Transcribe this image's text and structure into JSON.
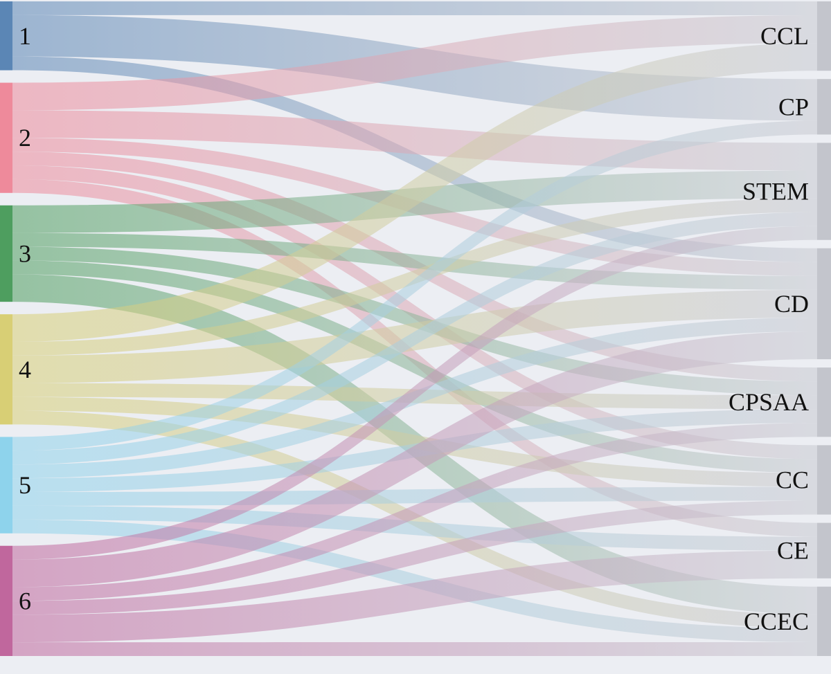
{
  "colors": {
    "background": "#ECEEF3",
    "target_bar": "#C3C5CC",
    "target_link_end": "#C8CAD1"
  },
  "sources": [
    {
      "label": "1",
      "color": "#5B86B5"
    },
    {
      "label": "2",
      "color": "#EE8A9B"
    },
    {
      "label": "3",
      "color": "#4E9E5F"
    },
    {
      "label": "4",
      "color": "#D8CF75"
    },
    {
      "label": "5",
      "color": "#8ED3EC"
    },
    {
      "label": "6",
      "color": "#C0679D"
    }
  ],
  "targets": [
    {
      "label": "CCL"
    },
    {
      "label": "CP"
    },
    {
      "label": "STEM"
    },
    {
      "label": "CD"
    },
    {
      "label": "CPSAA"
    },
    {
      "label": "CC"
    },
    {
      "label": "CE"
    },
    {
      "label": "CCEC"
    }
  ],
  "links": [
    {
      "source": 0,
      "target": 0,
      "value": 1
    },
    {
      "source": 0,
      "target": 1,
      "value": 3
    },
    {
      "source": 0,
      "target": 3,
      "value": 1
    },
    {
      "source": 1,
      "target": 0,
      "value": 2
    },
    {
      "source": 1,
      "target": 2,
      "value": 2
    },
    {
      "source": 1,
      "target": 3,
      "value": 1
    },
    {
      "source": 1,
      "target": 4,
      "value": 1
    },
    {
      "source": 1,
      "target": 5,
      "value": 1
    },
    {
      "source": 1,
      "target": 6,
      "value": 1
    },
    {
      "source": 2,
      "target": 2,
      "value": 2
    },
    {
      "source": 2,
      "target": 3,
      "value": 1
    },
    {
      "source": 2,
      "target": 4,
      "value": 1
    },
    {
      "source": 2,
      "target": 5,
      "value": 1
    },
    {
      "source": 2,
      "target": 7,
      "value": 2
    },
    {
      "source": 3,
      "target": 0,
      "value": 2
    },
    {
      "source": 3,
      "target": 2,
      "value": 1
    },
    {
      "source": 3,
      "target": 3,
      "value": 2
    },
    {
      "source": 3,
      "target": 4,
      "value": 1
    },
    {
      "source": 3,
      "target": 5,
      "value": 1
    },
    {
      "source": 3,
      "target": 7,
      "value": 1
    },
    {
      "source": 4,
      "target": 1,
      "value": 1
    },
    {
      "source": 4,
      "target": 2,
      "value": 1
    },
    {
      "source": 4,
      "target": 3,
      "value": 1
    },
    {
      "source": 4,
      "target": 4,
      "value": 1
    },
    {
      "source": 4,
      "target": 5,
      "value": 1
    },
    {
      "source": 4,
      "target": 6,
      "value": 1
    },
    {
      "source": 4,
      "target": 7,
      "value": 1
    },
    {
      "source": 5,
      "target": 2,
      "value": 1
    },
    {
      "source": 5,
      "target": 3,
      "value": 2
    },
    {
      "source": 5,
      "target": 4,
      "value": 1
    },
    {
      "source": 5,
      "target": 5,
      "value": 1
    },
    {
      "source": 5,
      "target": 6,
      "value": 2
    },
    {
      "source": 5,
      "target": 7,
      "value": 1
    }
  ]
}
